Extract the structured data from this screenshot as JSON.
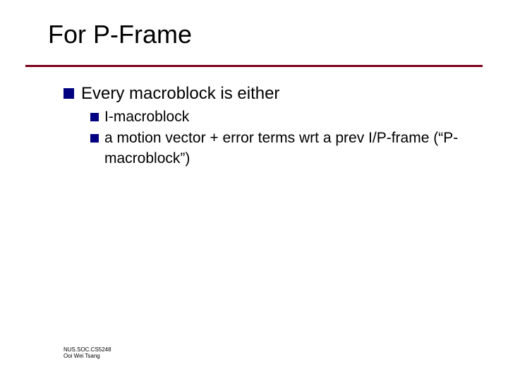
{
  "title": "For P-Frame",
  "bullets": {
    "l1": {
      "text": "Every macroblock is either"
    },
    "l2a": {
      "text": "I-macroblock"
    },
    "l2b": {
      "text": "a motion vector + error terms wrt a prev I/P-frame (“P-macroblock”)"
    }
  },
  "footer": {
    "line1": "NUS.SOC.CS5248",
    "line2": "Ooi Wei Tsang"
  },
  "colors": {
    "bullet_marker": "#000080",
    "underline": "#7a0019",
    "background": "#ffffff",
    "text": "#000000"
  }
}
